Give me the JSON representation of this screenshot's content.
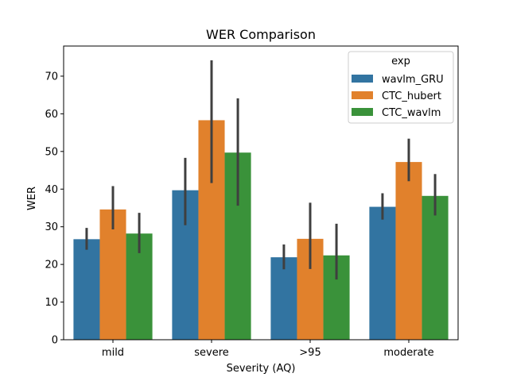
{
  "chart_data": {
    "type": "bar",
    "title": "WER Comparison",
    "xlabel": "Severity (AQ)",
    "ylabel": "WER",
    "categories": [
      "mild",
      "severe",
      ">95",
      "moderate"
    ],
    "ylim": [
      0,
      78
    ],
    "yticks": [
      0,
      10,
      20,
      30,
      40,
      50,
      60,
      70
    ],
    "grid": false,
    "legend": {
      "title": "exp",
      "position": "top-right"
    },
    "series": [
      {
        "name": "wavlm_GRU",
        "color": "#3274a1",
        "values": [
          26.7,
          39.7,
          21.9,
          35.3
        ],
        "ci_low": [
          23.9,
          30.4,
          18.7,
          31.9
        ],
        "ci_high": [
          29.7,
          48.3,
          25.3,
          38.9
        ]
      },
      {
        "name": "CTC_hubert",
        "color": "#e1812c",
        "values": [
          34.6,
          58.3,
          26.8,
          47.2
        ],
        "ci_low": [
          29.3,
          41.6,
          18.8,
          42.1
        ],
        "ci_high": [
          40.8,
          74.2,
          36.4,
          53.4
        ]
      },
      {
        "name": "CTC_wavlm",
        "color": "#3a923a",
        "values": [
          28.2,
          49.7,
          22.4,
          38.2
        ],
        "ci_low": [
          23.0,
          35.6,
          16.0,
          33.0
        ],
        "ci_high": [
          33.7,
          64.1,
          30.8,
          44.0
        ]
      }
    ],
    "error_bar_color": "#3f3f3f"
  }
}
